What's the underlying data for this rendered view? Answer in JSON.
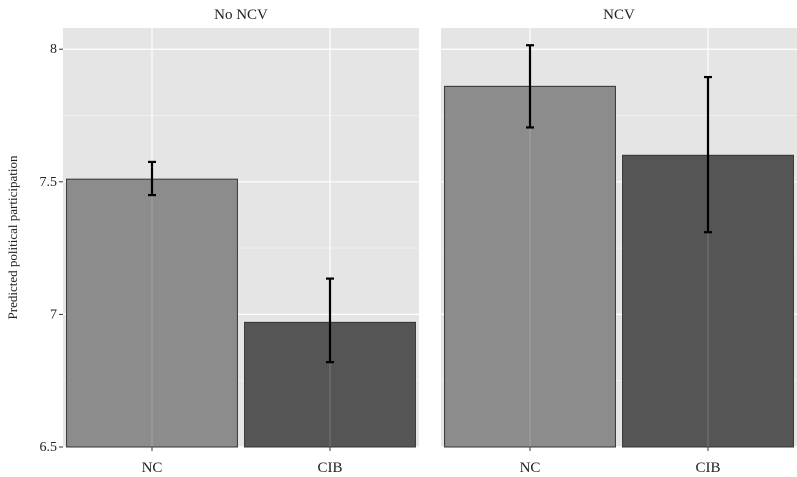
{
  "chart_data": {
    "type": "bar",
    "ylabel": "Predicted political participation",
    "ylim": [
      6.5,
      8.08
    ],
    "yticks": [
      6.5,
      7,
      7.5,
      8
    ],
    "ytick_labels": [
      "6.5",
      "7",
      "7.5",
      "8"
    ],
    "grid": true,
    "categories": [
      "NC",
      "CIB"
    ],
    "facets": [
      {
        "name": "No NCV",
        "values": [
          7.51,
          6.97
        ],
        "ci_low": [
          7.45,
          6.82
        ],
        "ci_high": [
          7.575,
          7.135
        ]
      },
      {
        "name": "NCV",
        "values": [
          7.86,
          7.6
        ],
        "ci_low": [
          7.705,
          7.31
        ],
        "ci_high": [
          8.015,
          7.895
        ]
      }
    ],
    "colors": {
      "panel_bg": "#e5e5e5",
      "grid": "#ffffff",
      "strip_bg": "#ffffff",
      "bar_fill": [
        "#8c8c8c",
        "#555555"
      ],
      "bar_stroke": "#333333",
      "errorbar": "#000000"
    }
  }
}
